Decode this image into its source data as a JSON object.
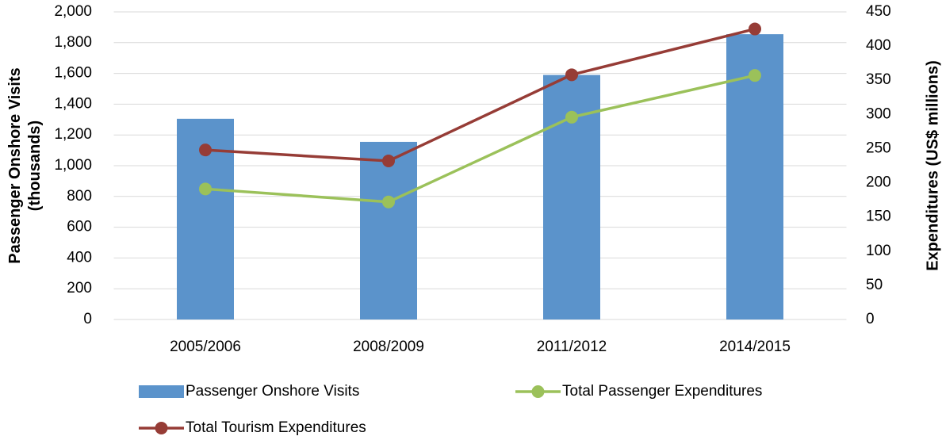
{
  "chart_data": {
    "type": "bar_line",
    "categories": [
      "2005/2006",
      "2008/2009",
      "2011/2012",
      "2014/2015"
    ],
    "ylabel": [
      "Passenger Onshore Visits",
      "(thousands)"
    ],
    "y2label": "Expenditures (US$ millions)",
    "ylim": [
      0,
      2000
    ],
    "yticks": [
      0,
      200,
      400,
      600,
      800,
      {
        "value": 1000,
        "label": "1,000"
      },
      {
        "value": 1200,
        "label": "1,200"
      },
      {
        "value": 1400,
        "label": "1,400"
      },
      {
        "value": 1600,
        "label": "1,600"
      },
      {
        "value": 1800,
        "label": "1,800"
      },
      {
        "value": 2000,
        "label": "2,000"
      }
    ],
    "y2lim": [
      0,
      450
    ],
    "y2ticks": [
      0,
      50,
      100,
      150,
      200,
      250,
      300,
      350,
      400,
      450
    ],
    "grid": true,
    "legend": "bottom",
    "series": [
      {
        "name": "Passenger Onshore Visits",
        "type": "bar",
        "color": "#5b93cb",
        "values": [
          1305,
          1155,
          1590,
          1855
        ]
      },
      {
        "name": "Total Passenger Expenditures",
        "type": "line",
        "axis": "y2",
        "color": "#9bc15a",
        "values": [
          191,
          172,
          296,
          357
        ]
      },
      {
        "name": "Total Tourism Expenditures",
        "type": "line",
        "axis": "y2",
        "color": "#963c36",
        "values": [
          248,
          232,
          358,
          425
        ]
      }
    ]
  }
}
